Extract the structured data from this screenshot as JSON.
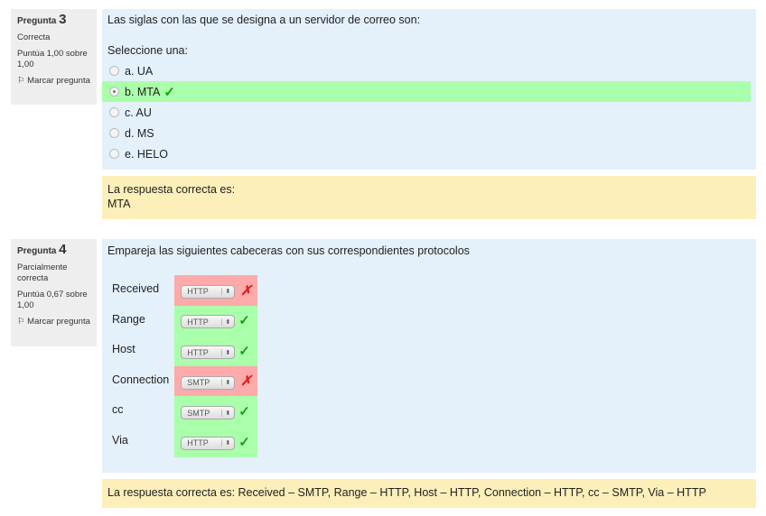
{
  "q3": {
    "label": "Pregunta",
    "number": "3",
    "state": "Correcta",
    "grade": "Puntúa 1,00 sobre 1,00",
    "flag": "Marcar pregunta",
    "text": "Las siglas con las que se designa a un servidor de correo son:",
    "prompt": "Seleccione una:",
    "options": [
      {
        "label": "a. UA"
      },
      {
        "label": "b. MTA"
      },
      {
        "label": "c. AU"
      },
      {
        "label": "d. MS"
      },
      {
        "label": "e. HELO"
      }
    ],
    "selected": "b. MTA",
    "feedback_label": "La respuesta correcta es:",
    "feedback_answer": "MTA"
  },
  "q4": {
    "label": "Pregunta",
    "number": "4",
    "state": "Parcialmente correcta",
    "grade": "Puntúa 0,67 sobre 1,00",
    "flag": "Marcar pregunta",
    "text": "Empareja las siguientes cabeceras con sus correspondientes protocolos",
    "rows": [
      {
        "header": "Received",
        "value": "HTTP",
        "correct": false
      },
      {
        "header": "Range",
        "value": "HTTP",
        "correct": true
      },
      {
        "header": "Host",
        "value": "HTTP",
        "correct": true
      },
      {
        "header": "Connection",
        "value": "SMTP",
        "correct": false
      },
      {
        "header": "cc",
        "value": "SMTP",
        "correct": true
      },
      {
        "header": "Via",
        "value": "HTTP",
        "correct": true
      }
    ],
    "feedback": "La respuesta correcta es: Received – SMTP, Range – HTTP, Host – HTTP, Connection – HTTP, cc – SMTP, Via – HTTP"
  },
  "colors": {
    "correct": "#aaffaa",
    "incorrect": "#ffaaaa",
    "content": "#e4f0fa",
    "feedback": "#fcefba"
  }
}
